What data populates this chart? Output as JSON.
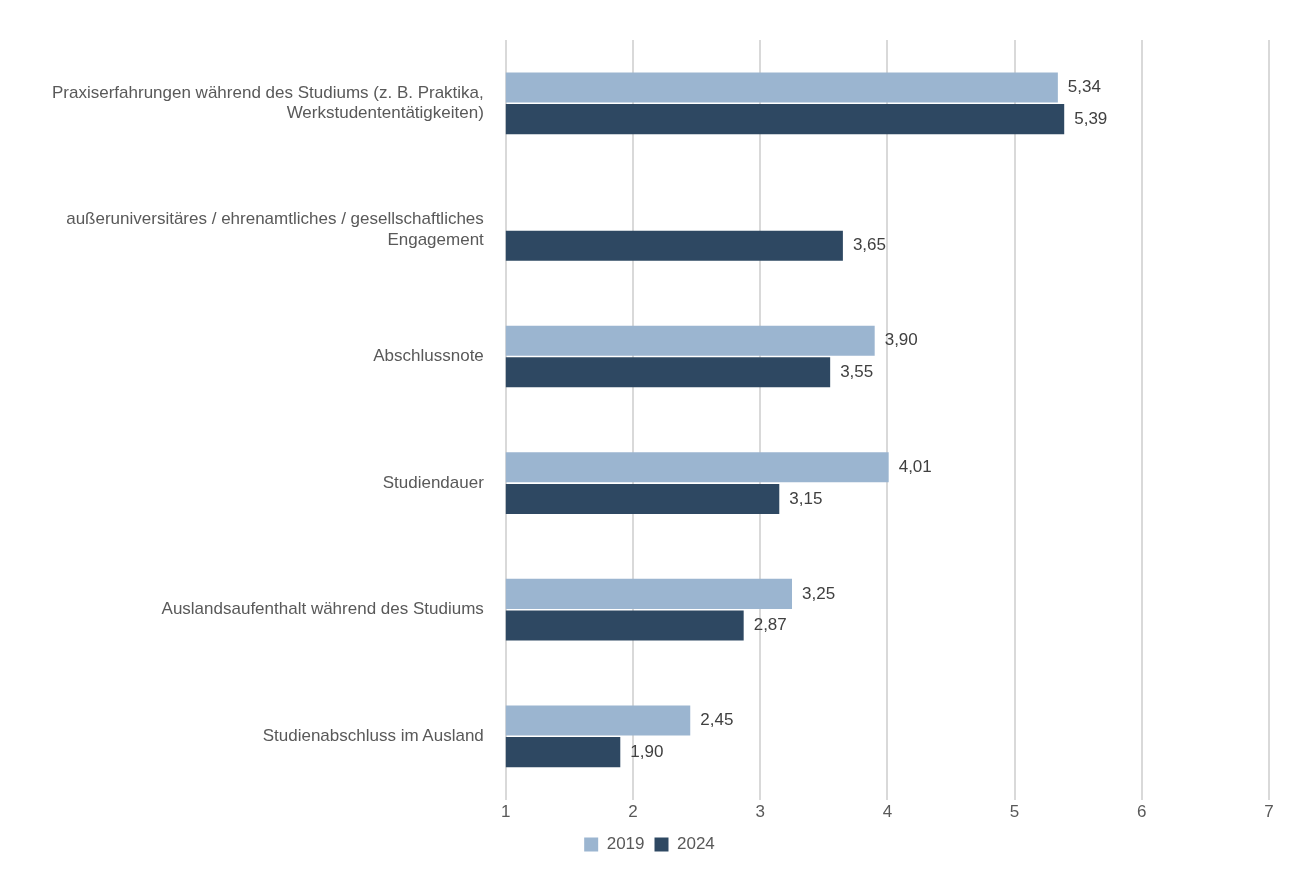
{
  "chart_data": {
    "type": "bar",
    "orientation": "horizontal",
    "categories": [
      "Praxiserfahrungen während des Studiums (z. B. Praktika, Werkstudententätigkeiten)",
      "außeruniversitäres / ehrenamtliches / gesellschaftliches Engagement",
      "Abschlussnote",
      "Studiendauer",
      "Auslandsaufenthalt während des Studiums",
      "Studienabschluss im Ausland"
    ],
    "series": [
      {
        "name": "2019",
        "color": "#9bb5d0",
        "values": [
          5.34,
          null,
          3.9,
          4.01,
          3.25,
          2.45
        ],
        "value_labels": [
          "5,34",
          null,
          "3,90",
          "4,01",
          "3,25",
          "2,45"
        ]
      },
      {
        "name": "2024",
        "color": "#2e4862",
        "values": [
          5.39,
          3.65,
          3.55,
          3.15,
          2.87,
          1.9
        ],
        "value_labels": [
          "5,39",
          "3,65",
          "3,55",
          "3,15",
          "2,87",
          "1,90"
        ]
      }
    ],
    "xlim": [
      1,
      7
    ],
    "xticks": [
      1,
      2,
      3,
      4,
      5,
      6,
      7
    ],
    "grid": "x",
    "legend": "bottom"
  }
}
